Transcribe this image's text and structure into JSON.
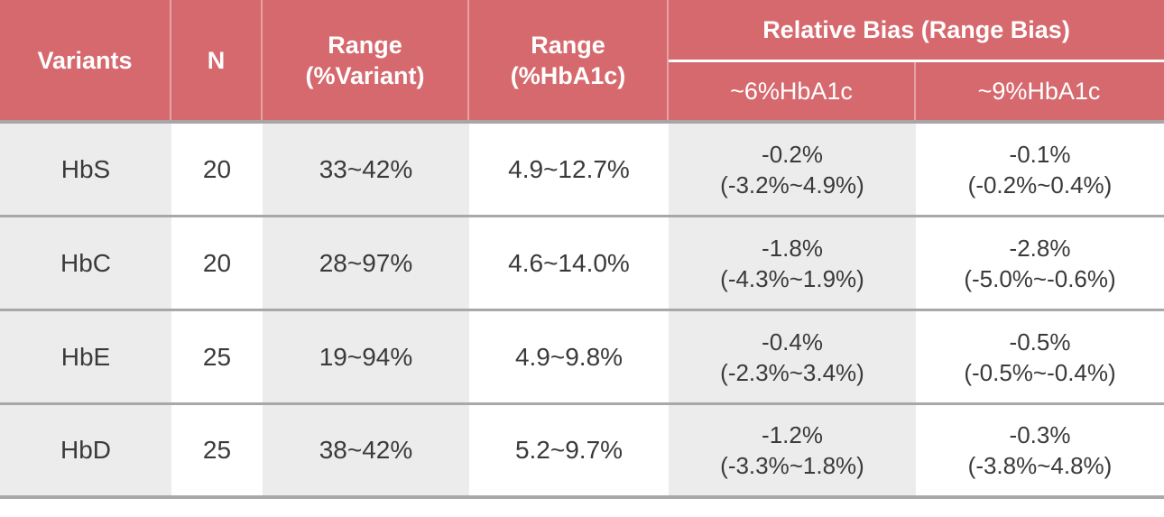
{
  "colors": {
    "header_bg": "#d6696e",
    "header_text": "#ffffff",
    "column_alt_bg": "#ececec",
    "column_bg": "#ffffff",
    "separator": "#a8a8a8",
    "body_text": "#3a3a3a"
  },
  "table": {
    "header": {
      "variants": "Variants",
      "n": "N",
      "range_variant_l1": "Range",
      "range_variant_l2": "(%Variant)",
      "range_hba1c_l1": "Range",
      "range_hba1c_l2": "(%HbA1c)",
      "relative_bias": "Relative Bias (Range Bias)",
      "sub6": "~6%HbA1c",
      "sub9": "~9%HbA1c"
    },
    "rows": [
      {
        "variant": "HbS",
        "n": "20",
        "range_variant": "33~42%",
        "range_hba1c": "4.9~12.7%",
        "bias6_value": "-0.2%",
        "bias6_range": "(-3.2%~4.9%)",
        "bias9_value": "-0.1%",
        "bias9_range": "(-0.2%~0.4%)"
      },
      {
        "variant": "HbC",
        "n": "20",
        "range_variant": "28~97%",
        "range_hba1c": "4.6~14.0%",
        "bias6_value": "-1.8%",
        "bias6_range": "(-4.3%~1.9%)",
        "bias9_value": "-2.8%",
        "bias9_range": "(-5.0%~-0.6%)"
      },
      {
        "variant": "HbE",
        "n": "25",
        "range_variant": "19~94%",
        "range_hba1c": "4.9~9.8%",
        "bias6_value": "-0.4%",
        "bias6_range": "(-2.3%~3.4%)",
        "bias9_value": "-0.5%",
        "bias9_range": "(-0.5%~-0.4%)"
      },
      {
        "variant": "HbD",
        "n": "25",
        "range_variant": "38~42%",
        "range_hba1c": "5.2~9.7%",
        "bias6_value": "-1.2%",
        "bias6_range": "(-3.3%~1.8%)",
        "bias9_value": "-0.3%",
        "bias9_range": "(-3.8%~4.8%)"
      }
    ]
  },
  "chart_data": {
    "type": "table",
    "columns": [
      "Variants",
      "N",
      "Range (%Variant)",
      "Range (%HbA1c)",
      "Relative Bias (Range Bias) ~6%HbA1c",
      "Relative Bias (Range Bias) ~9%HbA1c"
    ],
    "rows": [
      [
        "HbS",
        20,
        "33~42%",
        "4.9~12.7%",
        "-0.2% (-3.2%~4.9%)",
        "-0.1% (-0.2%~0.4%)"
      ],
      [
        "HbC",
        20,
        "28~97%",
        "4.6~14.0%",
        "-1.8% (-4.3%~1.9%)",
        "-2.8% (-5.0%~-0.6%)"
      ],
      [
        "HbE",
        25,
        "19~94%",
        "4.9~9.8%",
        "-0.4% (-2.3%~3.4%)",
        "-0.5% (-0.5%~-0.4%)"
      ],
      [
        "HbD",
        25,
        "38~42%",
        "5.2~9.7%",
        "-1.2% (-3.3%~1.8%)",
        "-0.3% (-3.8%~4.8%)"
      ]
    ]
  }
}
